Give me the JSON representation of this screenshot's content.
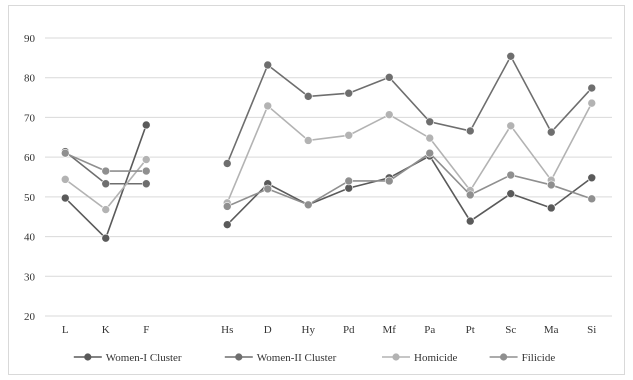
{
  "chart_data": {
    "type": "line",
    "title": "",
    "xlabel": "",
    "ylabel": "",
    "categories": [
      "L",
      "K",
      "F",
      "",
      "Hs",
      "D",
      "Hy",
      "Pd",
      "Mf",
      "Pa",
      "Pt",
      "Sc",
      "Ma",
      "Si"
    ],
    "ylim": [
      20,
      90
    ],
    "yticks": [
      20,
      30,
      40,
      50,
      60,
      70,
      80,
      90
    ],
    "grid": "horizontal",
    "legend_position": "bottom",
    "series": [
      {
        "name": "Women-I Cluster",
        "color": "#5a5a5a",
        "values": [
          49.7,
          39.6,
          68.1,
          null,
          43.0,
          53.3,
          48.0,
          52.2,
          54.8,
          60.3,
          43.9,
          50.8,
          47.2,
          54.8
        ]
      },
      {
        "name": "Women-II Cluster",
        "color": "#6e6e6e",
        "values": [
          61.4,
          53.3,
          53.3,
          null,
          58.4,
          83.2,
          75.3,
          76.1,
          80.1,
          68.9,
          66.6,
          85.4,
          66.3,
          77.4
        ]
      },
      {
        "name": "Homicide",
        "color": "#b3b3b3",
        "values": [
          54.4,
          46.8,
          59.4,
          null,
          48.5,
          72.9,
          64.2,
          65.5,
          70.7,
          64.8,
          51.6,
          67.9,
          54.2,
          73.6
        ]
      },
      {
        "name": "Filicide",
        "color": "#8f8f8f",
        "values": [
          61.0,
          56.5,
          56.5,
          null,
          47.6,
          52.0,
          48.0,
          54.0,
          54.0,
          61.0,
          50.5,
          55.5,
          53.0,
          49.5
        ]
      }
    ]
  }
}
